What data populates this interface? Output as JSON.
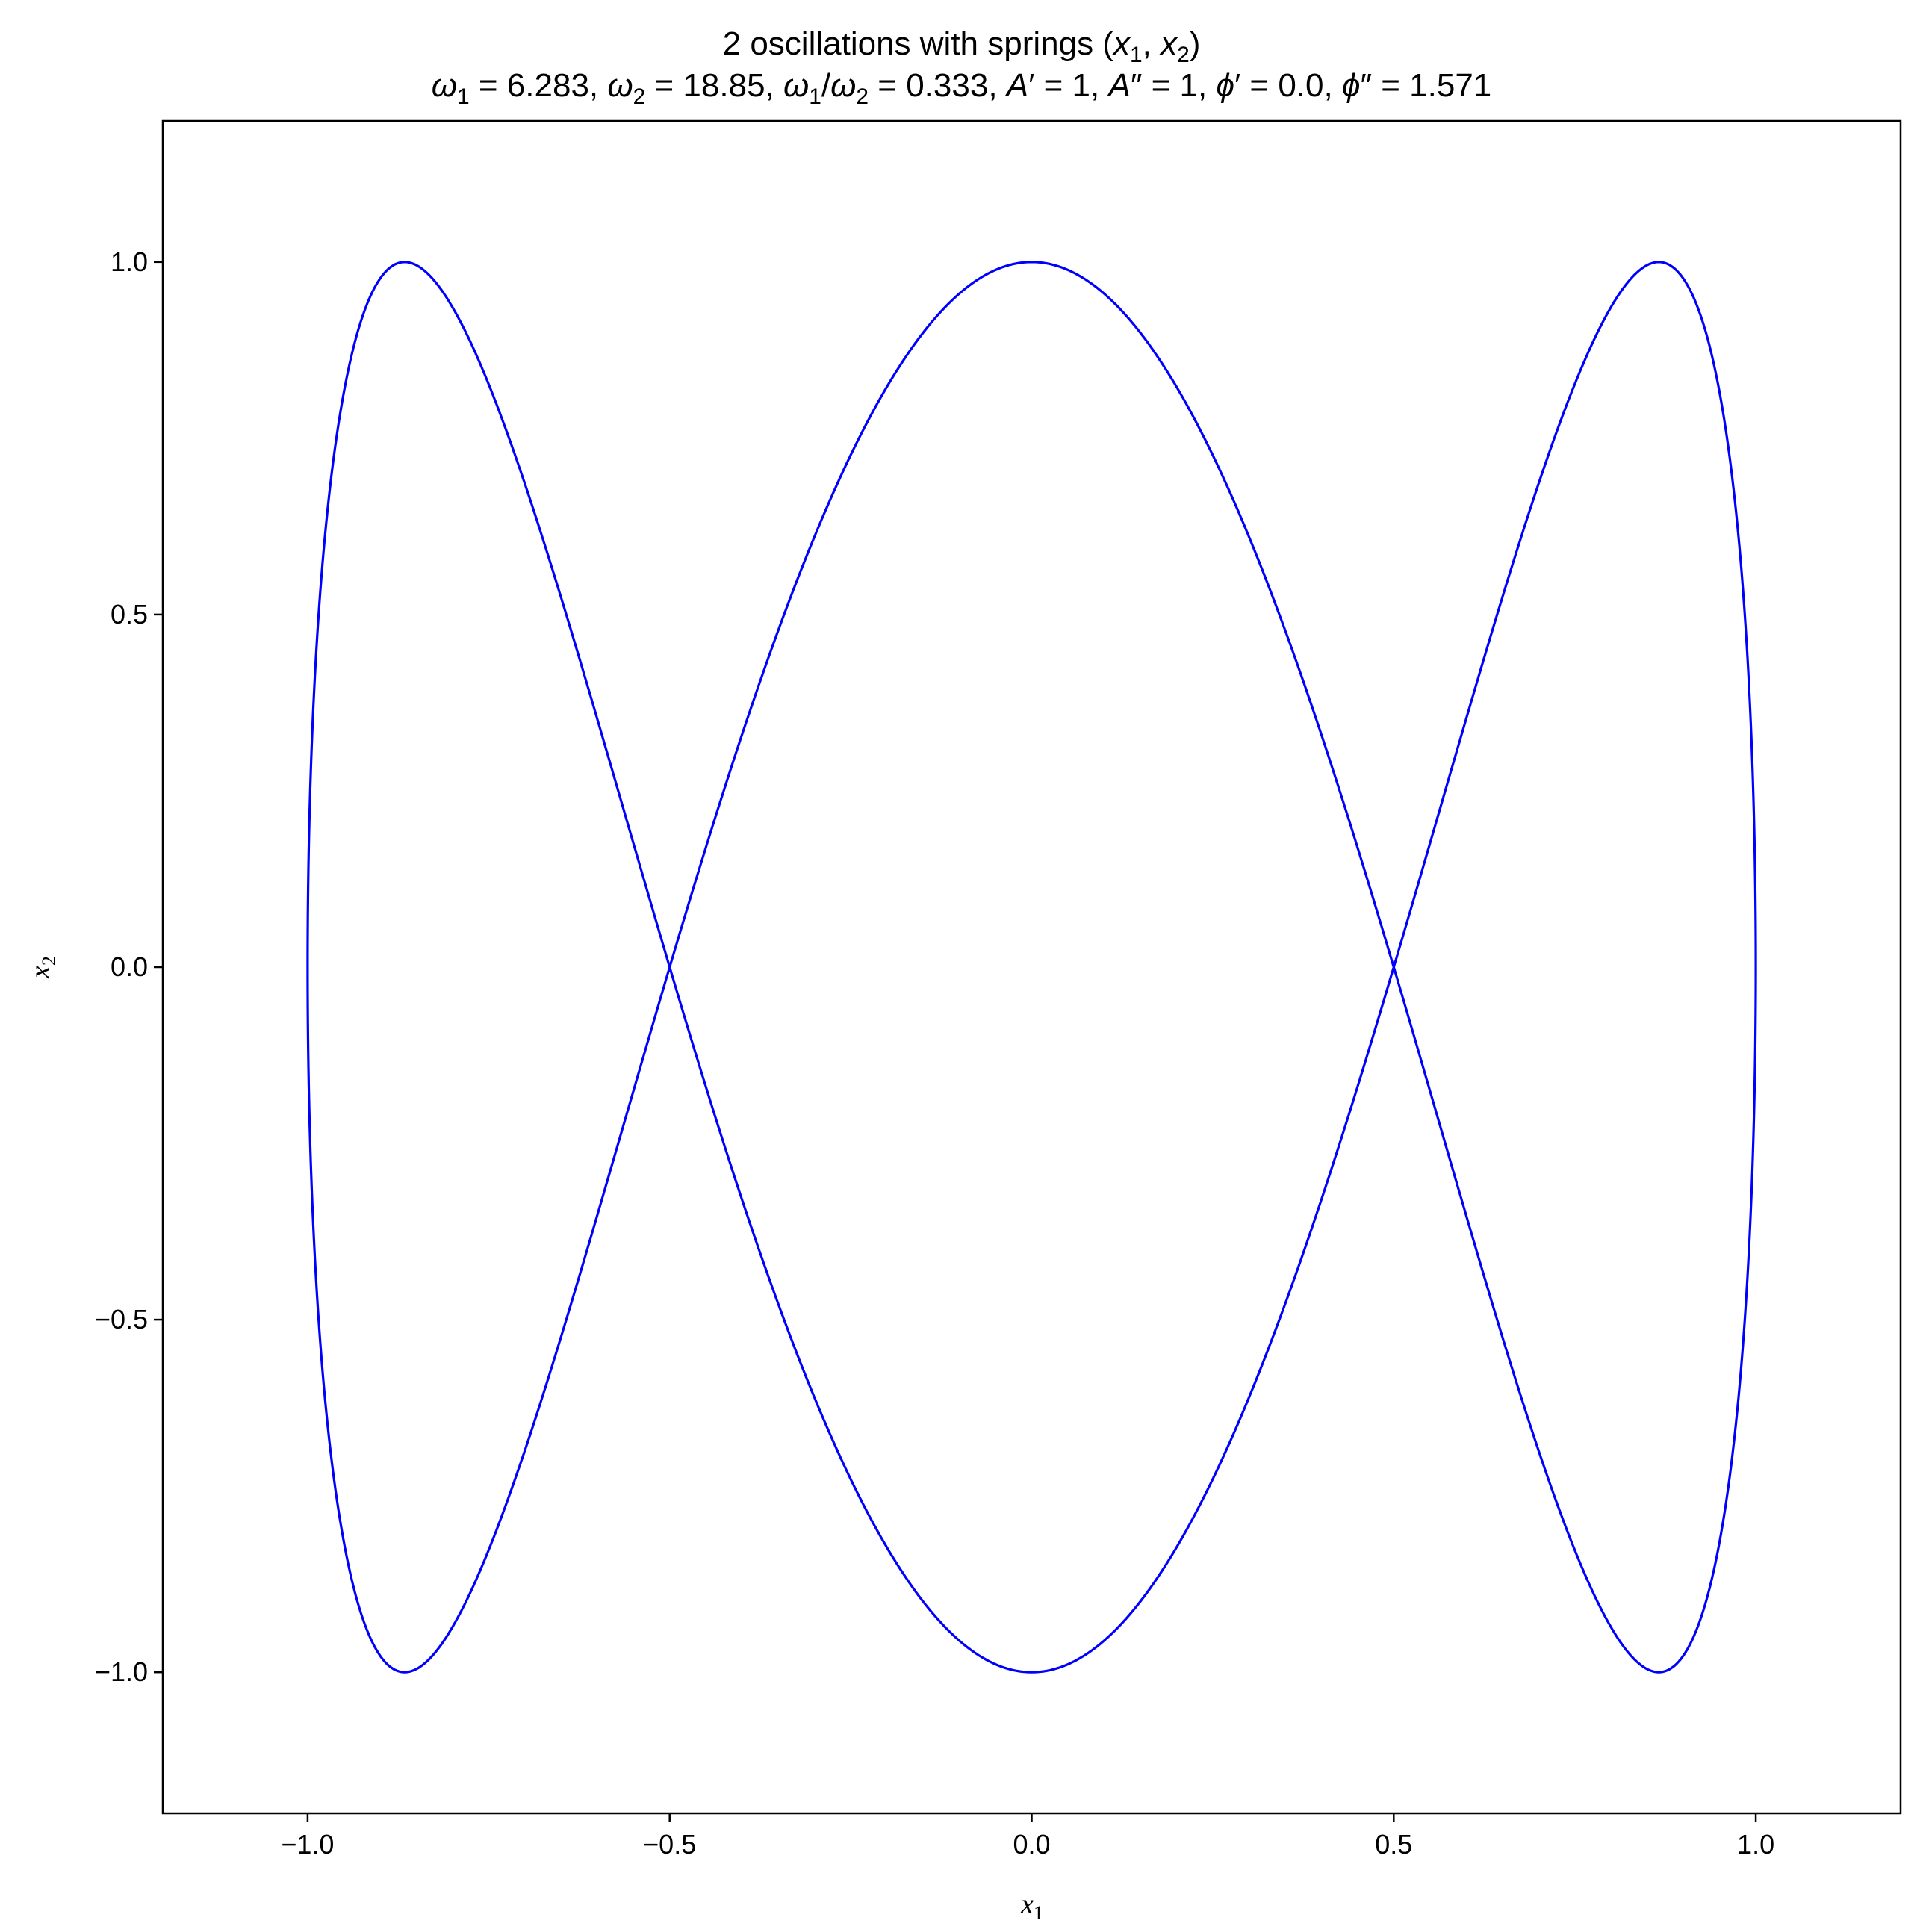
{
  "title": {
    "line1": "2 oscillations with springs (x₁, x₂)",
    "line2": "ω₁ = 6.283, ω₂ = 18.85, ω₁/ω₂ = 0.333, A′ = 1, A″ = 1, ϕ′ = 0.0, ϕ″ = 1.571"
  },
  "chart_data": {
    "type": "line",
    "title": "2 oscillations with springs (x₁, x₂)",
    "subtitle": "ω₁ = 6.283, ω₂ = 18.85, ω₁/ω₂ = 0.333, A′ = 1, A″ = 1, ϕ′ = 0.0, ϕ″ = 1.571",
    "xlabel": "x₁",
    "ylabel": "x₂",
    "xlim": [
      -1.2,
      1.2
    ],
    "ylim": [
      -1.2,
      1.2
    ],
    "grid": false,
    "line_color": "#0000ff",
    "x_ticks": [
      {
        "value": -1.0,
        "label": "−1.0"
      },
      {
        "value": -0.5,
        "label": "−0.5"
      },
      {
        "value": 0.0,
        "label": "0.0"
      },
      {
        "value": 0.5,
        "label": "0.5"
      },
      {
        "value": 1.0,
        "label": "1.0"
      }
    ],
    "y_ticks": [
      {
        "value": -1.0,
        "label": "−1.0"
      },
      {
        "value": -0.5,
        "label": "−0.5"
      },
      {
        "value": 0.0,
        "label": "0.0"
      },
      {
        "value": 0.5,
        "label": "0.5"
      },
      {
        "value": 1.0,
        "label": "1.0"
      }
    ],
    "series": [
      {
        "x": [
          1.0,
          0.866,
          0.5,
          0.0,
          -0.5,
          -0.866,
          -1.0,
          -0.866,
          -0.5,
          0.0,
          0.5,
          0.866,
          1.0,
          0.9659,
          0.7071,
          0.2588,
          -0.2588,
          -0.7071,
          -0.9659,
          -0.9659,
          -0.7071,
          -0.2588,
          0.2588,
          0.7071,
          0.9659
        ],
        "y": [
          0.0,
          1.0,
          0.0,
          -1.0,
          0.0,
          1.0,
          0.0,
          -1.0,
          0.0,
          1.0,
          0.0,
          -1.0,
          0.0,
          0.7071,
          -0.7071,
          0.7071,
          -0.7071,
          0.7071,
          -0.7071,
          0.7071,
          -0.7071,
          0.7071,
          -0.7071,
          0.7071,
          -0.7071
        ]
      }
    ]
  }
}
